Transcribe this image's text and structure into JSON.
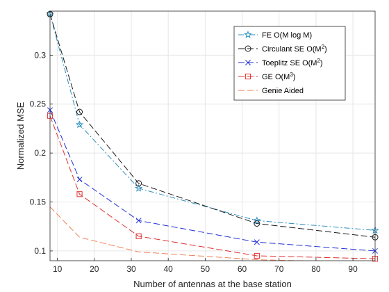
{
  "chart_data": {
    "type": "line",
    "title": "",
    "xlabel": "Number of antennas at the base station",
    "ylabel": "Normalized MSE",
    "xlim": [
      8,
      96
    ],
    "ylim": [
      0.09,
      0.345
    ],
    "xticks": [
      10,
      20,
      30,
      40,
      50,
      60,
      70,
      80,
      90
    ],
    "yticks": [
      0.1,
      0.15,
      0.2,
      0.25,
      0.3
    ],
    "xtick_labels": [
      "10",
      "20",
      "30",
      "40",
      "50",
      "60",
      "70",
      "80",
      "90"
    ],
    "ytick_labels": [
      "0.1",
      "0.15",
      "0.2",
      "0.25",
      "0.3"
    ],
    "grid": true,
    "legend_position": "top-right",
    "series": [
      {
        "legend_base": "FE O(M log M)",
        "legend_sup": "",
        "legend_tail": "",
        "color": "#2e8fbf",
        "dash": "dash-dot",
        "marker": "star",
        "x": [
          8,
          16,
          32,
          64,
          96
        ],
        "y": [
          0.342,
          0.229,
          0.164,
          0.131,
          0.121
        ]
      },
      {
        "legend_base": "Circulant SE O(M",
        "legend_sup": "2",
        "legend_tail": ")",
        "color": "#1a1a1a",
        "dash": "dashed",
        "marker": "circle",
        "x": [
          8,
          16,
          32,
          64,
          96
        ],
        "y": [
          0.342,
          0.242,
          0.169,
          0.128,
          0.114
        ]
      },
      {
        "legend_base": "Toeplitz SE O(M",
        "legend_sup": "2",
        "legend_tail": ")",
        "color": "#1f2fd6",
        "dash": "dashed",
        "marker": "x",
        "x": [
          8,
          16,
          32,
          64,
          96
        ],
        "y": [
          0.244,
          0.173,
          0.131,
          0.109,
          0.1
        ]
      },
      {
        "legend_base": "GE O(M",
        "legend_sup": "3",
        "legend_tail": ")",
        "color": "#e03030",
        "dash": "dashed",
        "marker": "square",
        "x": [
          8,
          16,
          32,
          64,
          96
        ],
        "y": [
          0.238,
          0.158,
          0.115,
          0.095,
          0.092
        ]
      },
      {
        "legend_base": "Genie Aided",
        "legend_sup": "",
        "legend_tail": "",
        "color": "#ef7f55",
        "dash": "dashed",
        "marker": "none",
        "x": [
          8,
          16,
          32,
          64,
          96
        ],
        "y": [
          0.145,
          0.114,
          0.099,
          0.091,
          0.088
        ]
      }
    ]
  }
}
